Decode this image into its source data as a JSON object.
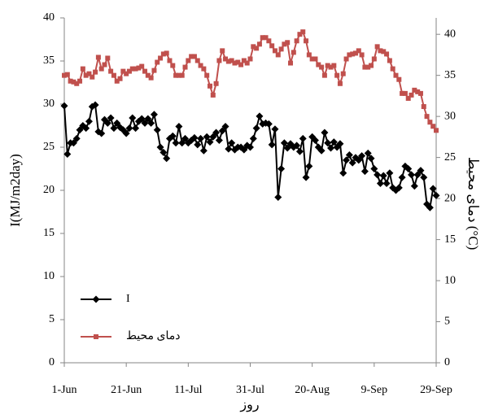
{
  "chart_data": {
    "type": "line",
    "ylabel": "I(MJ/m2day)",
    "y2label": "دمای محیط (°C)",
    "xlabel": "روز",
    "x": [
      "1-Jun",
      "2-Jun",
      "3-Jun",
      "4-Jun",
      "5-Jun",
      "6-Jun",
      "7-Jun",
      "8-Jun",
      "9-Jun",
      "10-Jun",
      "11-Jun",
      "12-Jun",
      "13-Jun",
      "14-Jun",
      "15-Jun",
      "16-Jun",
      "17-Jun",
      "18-Jun",
      "19-Jun",
      "20-Jun",
      "21-Jun",
      "22-Jun",
      "23-Jun",
      "24-Jun",
      "25-Jun",
      "26-Jun",
      "27-Jun",
      "28-Jun",
      "29-Jun",
      "30-Jun",
      "1-Jul",
      "2-Jul",
      "3-Jul",
      "4-Jul",
      "5-Jul",
      "6-Jul",
      "7-Jul",
      "8-Jul",
      "9-Jul",
      "10-Jul",
      "11-Jul",
      "12-Jul",
      "13-Jul",
      "14-Jul",
      "15-Jul",
      "16-Jul",
      "17-Jul",
      "18-Jul",
      "19-Jul",
      "20-Jul",
      "21-Jul",
      "22-Jul",
      "23-Jul",
      "24-Jul",
      "25-Jul",
      "26-Jul",
      "27-Jul",
      "28-Jul",
      "29-Jul",
      "30-Jul",
      "31-Jul",
      "1-Aug",
      "2-Aug",
      "3-Aug",
      "4-Aug",
      "5-Aug",
      "6-Aug",
      "7-Aug",
      "8-Aug",
      "9-Aug",
      "10-Aug",
      "11-Aug",
      "12-Aug",
      "13-Aug",
      "14-Aug",
      "15-Aug",
      "16-Aug",
      "17-Aug",
      "18-Aug",
      "19-Aug",
      "20-Aug",
      "21-Aug",
      "22-Aug",
      "23-Aug",
      "24-Aug",
      "25-Aug",
      "26-Aug",
      "27-Aug",
      "28-Aug",
      "29-Aug",
      "30-Aug",
      "31-Aug",
      "1-Sep",
      "2-Sep",
      "3-Sep",
      "4-Sep",
      "5-Sep",
      "6-Sep",
      "7-Sep",
      "8-Sep",
      "9-Sep",
      "10-Sep",
      "11-Sep",
      "12-Sep",
      "13-Sep",
      "14-Sep",
      "15-Sep",
      "16-Sep",
      "17-Sep",
      "18-Sep",
      "19-Sep",
      "20-Sep",
      "21-Sep",
      "22-Sep",
      "23-Sep",
      "24-Sep",
      "25-Sep",
      "26-Sep",
      "27-Sep",
      "28-Sep",
      "29-Sep"
    ],
    "xticks": [
      "1-Jun",
      "21-Jun",
      "11-Jul",
      "31-Jul",
      "20-Aug",
      "9-Sep",
      "29-Sep"
    ],
    "ylim": [
      0,
      40
    ],
    "yticks": [
      0,
      5,
      10,
      15,
      20,
      25,
      30,
      35,
      40
    ],
    "y2lim": [
      0,
      42
    ],
    "y2ticks": [
      0,
      5,
      10,
      15,
      20,
      25,
      30,
      35,
      40
    ],
    "legend": "lower left",
    "series": [
      {
        "name": "I",
        "color": "#000000",
        "marker": "diamond",
        "axis": "y",
        "values": [
          29.8,
          24.2,
          25.5,
          25.5,
          26.0,
          27.0,
          27.5,
          27.2,
          28.0,
          29.7,
          29.9,
          26.8,
          26.6,
          28.2,
          27.8,
          28.4,
          27.2,
          27.8,
          27.3,
          27.0,
          26.6,
          27.2,
          28.4,
          27.2,
          28.0,
          28.3,
          27.8,
          28.3,
          27.8,
          28.8,
          27.0,
          25.0,
          24.4,
          23.7,
          26.0,
          26.3,
          25.5,
          27.4,
          25.5,
          26.0,
          25.5,
          25.8,
          26.1,
          25.3,
          26.0,
          24.6,
          26.2,
          25.6,
          26.2,
          26.7,
          25.8,
          26.9,
          27.4,
          24.8,
          25.5,
          24.7,
          25.0,
          25.0,
          24.7,
          25.2,
          25.0,
          26.0,
          27.2,
          28.6,
          27.7,
          27.8,
          27.7,
          25.3,
          27.1,
          19.2,
          22.5,
          25.5,
          24.9,
          25.4,
          25.0,
          25.2,
          24.5,
          26.0,
          21.5,
          22.8,
          26.2,
          25.8,
          25.0,
          24.6,
          26.7,
          25.5,
          24.9,
          25.6,
          25.0,
          25.4,
          22.0,
          23.5,
          24.1,
          23.2,
          23.8,
          23.5,
          24.0,
          22.2,
          24.3,
          23.7,
          22.5,
          21.8,
          20.8,
          21.7,
          20.8,
          22.0,
          20.3,
          20.0,
          20.3,
          21.5,
          22.8,
          22.5,
          21.8,
          20.5,
          21.8,
          22.3,
          21.5,
          18.4,
          18.0,
          20.2,
          19.4
        ]
      },
      {
        "name": "دمای محیط",
        "color": "#c0504d",
        "marker": "square",
        "axis": "y2",
        "values": [
          35.0,
          35.1,
          34.3,
          34.2,
          34.0,
          34.3,
          35.8,
          35.0,
          35.2,
          34.8,
          35.4,
          37.2,
          35.8,
          36.3,
          37.1,
          35.5,
          35.0,
          34.3,
          34.6,
          35.5,
          35.2,
          35.5,
          35.8,
          35.8,
          35.9,
          36.1,
          35.5,
          35.0,
          34.7,
          35.6,
          36.6,
          37.1,
          37.6,
          37.7,
          36.8,
          36.2,
          35.0,
          35.0,
          35.0,
          36.0,
          36.8,
          37.3,
          37.3,
          36.8,
          36.2,
          35.8,
          35.0,
          33.7,
          32.6,
          34.0,
          36.8,
          38.0,
          37.0,
          36.7,
          36.8,
          36.5,
          36.6,
          36.3,
          36.8,
          36.5,
          37.0,
          38.5,
          38.3,
          38.8,
          39.6,
          39.6,
          39.2,
          38.6,
          38.0,
          37.5,
          38.2,
          38.8,
          39.0,
          36.5,
          37.8,
          39.2,
          40.0,
          40.3,
          39.2,
          37.5,
          37.0,
          37.0,
          36.3,
          36.0,
          35.0,
          36.2,
          36.0,
          36.2,
          35.0,
          34.0,
          35.2,
          37.0,
          37.5,
          37.6,
          37.7,
          38.0,
          37.5,
          36.0,
          36.0,
          36.2,
          37.0,
          38.5,
          38.0,
          37.9,
          37.6,
          36.8,
          35.8,
          35.0,
          34.5,
          32.8,
          32.8,
          32.2,
          32.6,
          33.2,
          33.0,
          32.8,
          31.2,
          30.0,
          29.3,
          28.8,
          28.3
        ]
      }
    ]
  }
}
